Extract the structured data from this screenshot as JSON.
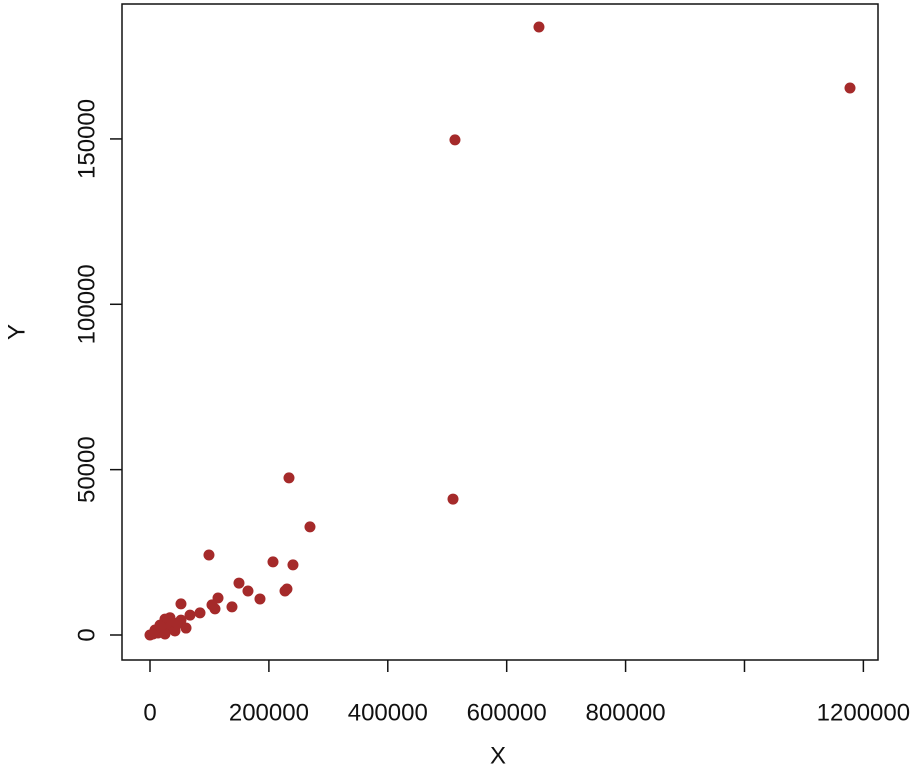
{
  "chart_data": {
    "type": "scatter",
    "x_label": "X",
    "y_label": "Y",
    "color": "#a52a2a",
    "x": [
      654300,
      1177500,
      513000,
      233800,
      509700,
      269100,
      99200,
      206900,
      240500,
      149700,
      164800,
      230400,
      227100,
      114400,
      185000,
      52100,
      104300,
      109300,
      137900,
      84100,
      67300,
      52100,
      60600,
      25200,
      37000,
      43700,
      16800,
      8400,
      0,
      20200,
      30300,
      13500,
      42000,
      25200,
      5000,
      33600,
      45000,
      18000
    ],
    "values": [
      183850,
      165400,
      149700,
      47500,
      41100,
      32700,
      24200,
      22100,
      21200,
      15700,
      13300,
      13900,
      13300,
      11200,
      10900,
      9400,
      9100,
      7900,
      8500,
      6700,
      6000,
      4500,
      2100,
      4800,
      3900,
      3000,
      3000,
      1500,
      0,
      1500,
      2100,
      600,
      1200,
      300,
      300,
      5200,
      3500,
      2500
    ],
    "xlim": [
      -47100,
      1224600
    ],
    "ylim": [
      -7560,
      190800
    ],
    "xticks": [
      0,
      200000,
      400000,
      600000,
      800000,
      {
        "value": 1000000,
        "label": null
      },
      1200000
    ],
    "yticks": [
      0,
      50000,
      100000,
      150000
    ]
  }
}
